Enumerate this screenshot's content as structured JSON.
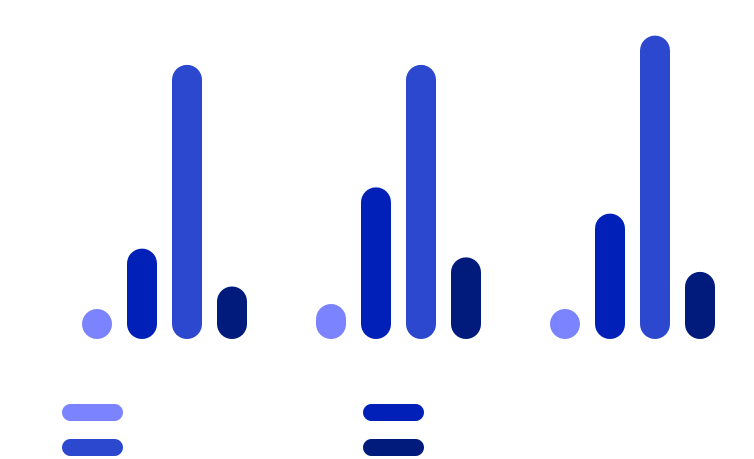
{
  "chart_data": {
    "type": "bar",
    "categories": [
      "",
      "",
      ""
    ],
    "series": [
      {
        "color": "#7b83ff",
        "values": [
          0.8,
          1.2,
          0.6
        ]
      },
      {
        "color": "#0020b8",
        "values": [
          3.1,
          5.2,
          4.3
        ]
      },
      {
        "color": "#2b48cf",
        "values": [
          9.4,
          9.4,
          10.4
        ]
      },
      {
        "color": "#001b7c",
        "values": [
          1.8,
          2.8,
          2.3
        ]
      }
    ],
    "ylim": [
      0,
      10.8
    ],
    "grid": false,
    "axes_visible": false,
    "legend": {
      "position": "bottom",
      "entries": [
        {
          "color": "#7b83ff"
        },
        {
          "color": "#2b48cf"
        },
        {
          "color": "#0020b8"
        },
        {
          "color": "#001b7c"
        }
      ]
    }
  }
}
